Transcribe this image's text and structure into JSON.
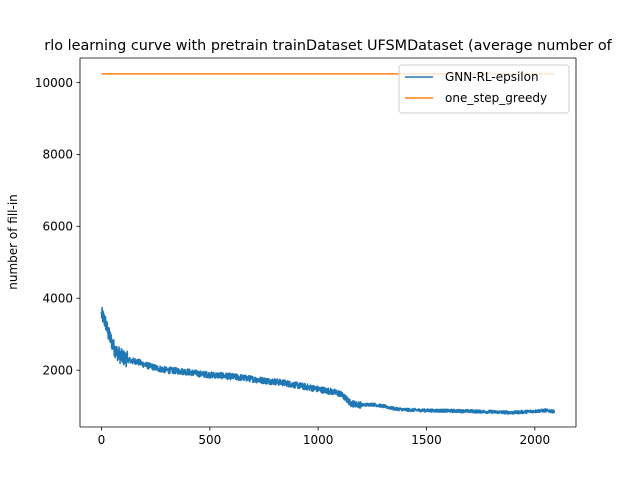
{
  "chart_data": {
    "type": "line",
    "title": "rlo learning curve with pretrain trainDataset UFSMDataset (average number of",
    "xlabel": "",
    "ylabel": "number of fill-in",
    "xlim": [
      -99,
      2190
    ],
    "ylim": [
      420,
      10680
    ],
    "x_ticks": [
      0,
      500,
      1000,
      1500,
      2000
    ],
    "y_ticks": [
      2000,
      4000,
      6000,
      8000,
      10000
    ],
    "grid": false,
    "legend_position": "upper right",
    "series": [
      {
        "name": "GNN-RL-epsilon",
        "color": "#1f77b4",
        "x": [
          0,
          10,
          20,
          30,
          40,
          50,
          60,
          70,
          80,
          90,
          100,
          120,
          140,
          160,
          180,
          200,
          230,
          260,
          300,
          350,
          400,
          450,
          500,
          550,
          600,
          650,
          700,
          750,
          800,
          850,
          900,
          950,
          1000,
          1050,
          1080,
          1100,
          1130,
          1150,
          1200,
          1250,
          1300,
          1350,
          1400,
          1450,
          1500,
          1600,
          1700,
          1800,
          1900,
          2000,
          2050,
          2090
        ],
        "y": [
          3550,
          3450,
          3300,
          3050,
          2900,
          2750,
          2600,
          2500,
          2450,
          2380,
          2350,
          2300,
          2250,
          2250,
          2200,
          2150,
          2100,
          2050,
          2000,
          1980,
          1950,
          1900,
          1870,
          1850,
          1820,
          1790,
          1750,
          1710,
          1680,
          1640,
          1580,
          1530,
          1470,
          1420,
          1380,
          1350,
          1200,
          1080,
          1030,
          1050,
          1000,
          930,
          900,
          890,
          880,
          870,
          860,
          840,
          820,
          860,
          880,
          850
        ],
        "noise": 90
      },
      {
        "name": "one_step_greedy",
        "color": "#ff7f0e",
        "x": [
          0,
          2090
        ],
        "y": [
          10240,
          10240
        ]
      }
    ]
  }
}
